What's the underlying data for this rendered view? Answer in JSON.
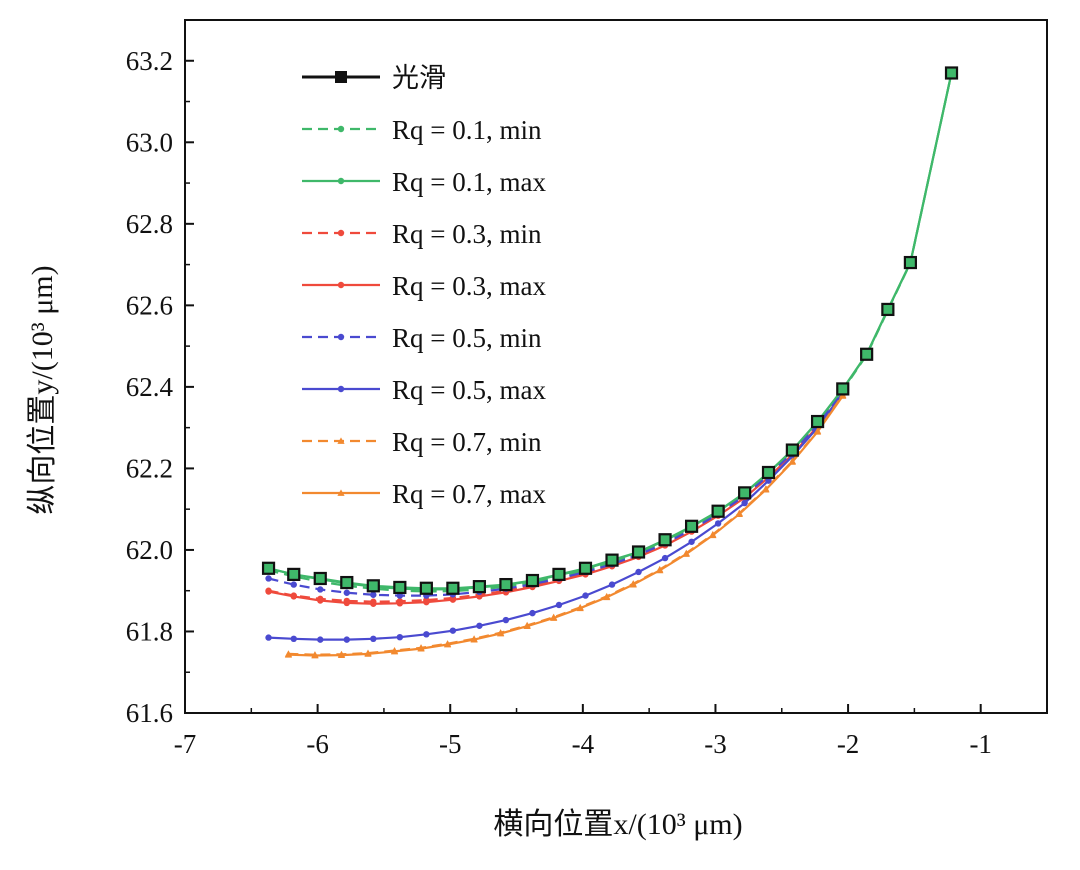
{
  "chart_data": {
    "type": "line",
    "xlabel": "横向位置x/(10³ μm)",
    "ylabel": "纵向位置y/(10³ μm)",
    "xlim": [
      -7,
      -0.5
    ],
    "ylim": [
      61.6,
      63.3
    ],
    "xticks": [
      -7,
      -6,
      -5,
      -4,
      -3,
      -2,
      -1
    ],
    "xtick_labels": [
      "-7",
      "-6",
      "-5",
      "-4",
      "-3",
      "-2",
      "-1"
    ],
    "yticks": [
      61.6,
      61.8,
      62.0,
      62.2,
      62.4,
      62.6,
      62.8,
      63.0,
      63.2
    ],
    "ytick_labels": [
      "61.6",
      "61.8",
      "62.0",
      "62.2",
      "62.4",
      "62.6",
      "62.8",
      "63.0",
      "63.2"
    ],
    "grid": false,
    "legend_position": "top-left",
    "series": [
      {
        "name": "光滑",
        "color": "#111111",
        "dashed": false,
        "marker": "square",
        "x": [
          -6.37,
          -6.18,
          -5.98,
          -5.78,
          -5.58,
          -5.38,
          -5.18,
          -4.98,
          -4.78,
          -4.58,
          -4.38,
          -4.18,
          -3.98,
          -3.78,
          -3.58,
          -3.38,
          -3.18,
          -2.98,
          -2.78,
          -2.6,
          -2.42,
          -2.23,
          -2.04,
          -1.86,
          -1.7,
          -1.53,
          -1.22
        ],
        "y": [
          61.955,
          61.94,
          61.93,
          61.92,
          61.912,
          61.908,
          61.906,
          61.906,
          61.91,
          61.915,
          61.925,
          61.94,
          61.955,
          61.975,
          61.995,
          62.025,
          62.058,
          62.095,
          62.14,
          62.19,
          62.245,
          62.315,
          62.395,
          62.48,
          62.59,
          62.705,
          63.17
        ]
      },
      {
        "name": "Rq = 0.1, min",
        "color": "#3fb86a",
        "dashed": true,
        "marker": "dot",
        "x": [
          -6.37,
          -6.18,
          -5.98,
          -5.78,
          -5.58,
          -5.38,
          -5.18,
          -4.98,
          -4.78,
          -4.58,
          -4.38,
          -4.18,
          -3.98,
          -3.78,
          -3.58,
          -3.38,
          -3.18,
          -2.98,
          -2.78,
          -2.6,
          -2.42,
          -2.23,
          -2.04,
          -1.86,
          -1.7,
          -1.53,
          -1.22
        ],
        "y": [
          61.95,
          61.935,
          61.922,
          61.912,
          61.905,
          61.9,
          61.898,
          61.899,
          61.903,
          61.91,
          61.92,
          61.935,
          61.95,
          61.97,
          61.992,
          62.02,
          62.055,
          62.092,
          62.137,
          62.187,
          62.243,
          62.312,
          62.392,
          62.478,
          62.588,
          62.704,
          63.17
        ]
      },
      {
        "name": "Rq = 0.1, max",
        "color": "#3fb86a",
        "dashed": false,
        "marker": "dot",
        "x": [
          -6.37,
          -6.18,
          -5.98,
          -5.78,
          -5.58,
          -5.38,
          -5.18,
          -4.98,
          -4.78,
          -4.58,
          -4.38,
          -4.18,
          -3.98,
          -3.78,
          -3.58,
          -3.38,
          -3.18,
          -2.98,
          -2.78,
          -2.6,
          -2.42,
          -2.23,
          -2.04,
          -1.86,
          -1.7,
          -1.53,
          -1.22
        ],
        "y": [
          61.955,
          61.94,
          61.928,
          61.918,
          61.91,
          61.905,
          61.903,
          61.904,
          61.908,
          61.914,
          61.924,
          61.938,
          61.954,
          61.973,
          61.995,
          62.023,
          62.057,
          62.094,
          62.139,
          62.189,
          62.245,
          62.314,
          62.394,
          62.48,
          62.59,
          62.705,
          63.17
        ]
      },
      {
        "name": "Rq = 0.3, min",
        "color": "#ef4a3c",
        "dashed": true,
        "marker": "dot",
        "x": [
          -6.37,
          -6.18,
          -5.98,
          -5.78,
          -5.58,
          -5.38,
          -5.18,
          -4.98,
          -4.78,
          -4.58,
          -4.38,
          -4.18,
          -3.98,
          -3.78,
          -3.58,
          -3.38,
          -3.18,
          -2.98,
          -2.78,
          -2.6,
          -2.42,
          -2.23,
          -2.04
        ],
        "y": [
          61.9,
          61.888,
          61.88,
          61.875,
          61.873,
          61.874,
          61.877,
          61.882,
          61.89,
          61.9,
          61.912,
          61.926,
          61.942,
          61.962,
          61.985,
          62.013,
          62.047,
          62.086,
          62.13,
          62.18,
          62.236,
          62.305,
          62.385
        ]
      },
      {
        "name": "Rq = 0.3, max",
        "color": "#ef4a3c",
        "dashed": false,
        "marker": "dot",
        "x": [
          -6.37,
          -6.18,
          -5.98,
          -5.78,
          -5.58,
          -5.38,
          -5.18,
          -4.98,
          -4.78,
          -4.58,
          -4.38,
          -4.18,
          -3.98,
          -3.78,
          -3.58,
          -3.38,
          -3.18,
          -2.98,
          -2.78,
          -2.6,
          -2.42,
          -2.23,
          -2.04
        ],
        "y": [
          61.898,
          61.886,
          61.876,
          61.87,
          61.868,
          61.869,
          61.872,
          61.878,
          61.886,
          61.896,
          61.909,
          61.924,
          61.94,
          61.96,
          61.983,
          62.011,
          62.045,
          62.084,
          62.128,
          62.178,
          62.234,
          62.303,
          62.383
        ]
      },
      {
        "name": "Rq = 0.5, min",
        "color": "#4a4ad0",
        "dashed": true,
        "marker": "dot",
        "x": [
          -6.37,
          -6.18,
          -5.98,
          -5.78,
          -5.58,
          -5.38,
          -5.18,
          -4.98,
          -4.78,
          -4.58,
          -4.38,
          -4.18,
          -3.98,
          -3.78,
          -3.58,
          -3.38,
          -3.18,
          -2.98,
          -2.78,
          -2.6,
          -2.42,
          -2.23,
          -2.04
        ],
        "y": [
          61.93,
          61.915,
          61.903,
          61.895,
          61.89,
          61.888,
          61.888,
          61.891,
          61.897,
          61.905,
          61.916,
          61.93,
          61.946,
          61.965,
          61.988,
          62.016,
          62.05,
          62.088,
          62.133,
          62.183,
          62.239,
          62.308,
          62.389
        ]
      },
      {
        "name": "Rq = 0.5, max",
        "color": "#4a4ad0",
        "dashed": false,
        "marker": "dot",
        "x": [
          -6.37,
          -6.18,
          -5.98,
          -5.78,
          -5.58,
          -5.38,
          -5.18,
          -4.98,
          -4.78,
          -4.58,
          -4.38,
          -4.18,
          -3.98,
          -3.78,
          -3.58,
          -3.38,
          -3.18,
          -2.98,
          -2.78,
          -2.6,
          -2.42,
          -2.23,
          -2.04
        ],
        "y": [
          61.785,
          61.782,
          61.78,
          61.78,
          61.782,
          61.786,
          61.793,
          61.802,
          61.814,
          61.828,
          61.845,
          61.865,
          61.888,
          61.915,
          61.946,
          61.98,
          62.02,
          62.065,
          62.115,
          62.17,
          62.23,
          62.3,
          62.385
        ]
      },
      {
        "name": "Rq = 0.7, min",
        "color": "#f2892f",
        "dashed": true,
        "marker": "triangle",
        "x": [
          -6.22,
          -6.02,
          -5.82,
          -5.62,
          -5.42,
          -5.22,
          -5.02,
          -4.82,
          -4.62,
          -4.42,
          -4.22,
          -4.02,
          -3.82,
          -3.62,
          -3.42,
          -3.22,
          -3.02,
          -2.82,
          -2.62,
          -2.42,
          -2.23,
          -2.04
        ],
        "y": [
          61.745,
          61.743,
          61.744,
          61.747,
          61.753,
          61.76,
          61.77,
          61.782,
          61.797,
          61.815,
          61.835,
          61.859,
          61.886,
          61.917,
          61.952,
          61.992,
          62.038,
          62.09,
          62.15,
          62.218,
          62.292,
          62.38
        ]
      },
      {
        "name": "Rq = 0.7, max",
        "color": "#f2892f",
        "dashed": false,
        "marker": "triangle",
        "x": [
          -6.22,
          -6.02,
          -5.82,
          -5.62,
          -5.42,
          -5.22,
          -5.02,
          -4.82,
          -4.62,
          -4.42,
          -4.22,
          -4.02,
          -3.82,
          -3.62,
          -3.42,
          -3.22,
          -3.02,
          -2.82,
          -2.62,
          -2.42,
          -2.23,
          -2.04
        ],
        "y": [
          61.743,
          61.741,
          61.742,
          61.745,
          61.751,
          61.758,
          61.768,
          61.78,
          61.795,
          61.813,
          61.833,
          61.857,
          61.884,
          61.915,
          61.95,
          61.99,
          62.036,
          62.088,
          62.148,
          62.216,
          62.29,
          62.378
        ]
      }
    ]
  }
}
